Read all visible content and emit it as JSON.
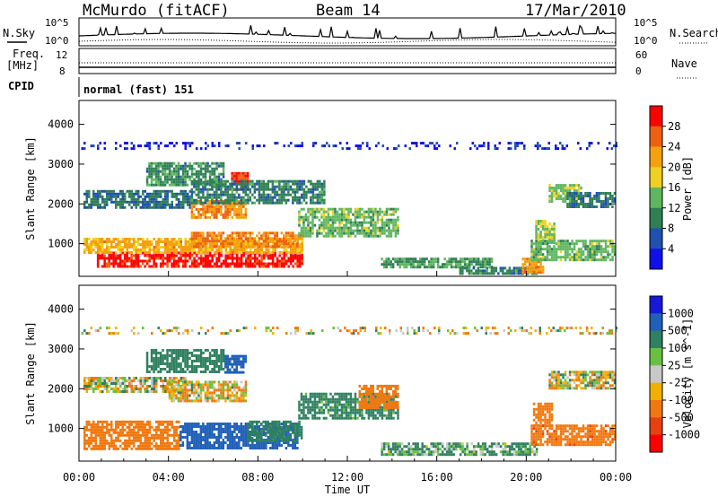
{
  "header": {
    "station": "McMurdo (fitACF)",
    "beam": "Beam 14",
    "date": "17/Mar/2010"
  },
  "top_panels": {
    "nsky_label": "N.Sky",
    "nsearch_label": "N.Search",
    "noise_ticks": [
      "10^5",
      "10^0"
    ],
    "freq_label_1": "Freq.",
    "freq_label_2": "[MHz]",
    "freq_ticks": [
      "12",
      "8"
    ],
    "nave_label": "Nave",
    "nave_ticks": [
      "60",
      "0"
    ],
    "cpid_label": "CPID",
    "cpid_value": "normal (fast) 151"
  },
  "axes": {
    "ylabel": "Slant Range [km]",
    "xlabel": "Time UT",
    "x_ticks": [
      "00:00",
      "04:00",
      "08:00",
      "12:00",
      "16:00",
      "20:00",
      "00:00"
    ],
    "y_ticks": [
      "1000",
      "2000",
      "3000",
      "4000"
    ]
  },
  "chart_data": [
    {
      "type": "heatmap",
      "title": "",
      "xlabel": "Time UT",
      "ylabel": "Slant Range [km]",
      "xlim": [
        0,
        24
      ],
      "ylim": [
        180,
        4600
      ],
      "colorbar_label": "Power [dB]",
      "colorbar_ticks": [
        "4",
        "8",
        "12",
        "16",
        "20",
        "24",
        "28"
      ],
      "colors": [
        "#1010e8",
        "#2050b0",
        "#2f7f55",
        "#5fb65f",
        "#f0d020",
        "#f5a010",
        "#ee6010",
        "#ff0000"
      ],
      "value_range": [
        0,
        30
      ],
      "regions": [
        {
          "t": [
            0.8,
            10.0
          ],
          "r": [
            450,
            800
          ],
          "v": 28
        },
        {
          "t": [
            0.2,
            10.0
          ],
          "r": [
            780,
            1150
          ],
          "v": 20
        },
        {
          "t": [
            5.0,
            10.0
          ],
          "r": [
            950,
            1300
          ],
          "v": 22
        },
        {
          "t": [
            9.8,
            14.3
          ],
          "r": [
            1200,
            1900
          ],
          "v": 13
        },
        {
          "t": [
            0.2,
            5.0
          ],
          "r": [
            1900,
            2350
          ],
          "v": 8
        },
        {
          "t": [
            5.0,
            7.5
          ],
          "r": [
            1650,
            2100
          ],
          "v": 22
        },
        {
          "t": [
            6.8,
            7.6
          ],
          "r": [
            2350,
            2800
          ],
          "v": 27
        },
        {
          "t": [
            5.0,
            11.0
          ],
          "r": [
            2000,
            2600
          ],
          "v": 9
        },
        {
          "t": [
            3.0,
            6.5
          ],
          "r": [
            2500,
            3050
          ],
          "v": 10
        },
        {
          "t": [
            13.5,
            18.5
          ],
          "r": [
            420,
            650
          ],
          "v": 11
        },
        {
          "t": [
            17.0,
            20.5
          ],
          "r": [
            250,
            420
          ],
          "v": 9
        },
        {
          "t": [
            19.8,
            20.8
          ],
          "r": [
            300,
            650
          ],
          "v": 22
        },
        {
          "t": [
            20.4,
            21.3
          ],
          "r": [
            1050,
            1600
          ],
          "v": 15
        },
        {
          "t": [
            20.2,
            24.0
          ],
          "r": [
            600,
            1100
          ],
          "v": 13
        },
        {
          "t": [
            21.0,
            22.5
          ],
          "r": [
            2050,
            2500
          ],
          "v": 14
        },
        {
          "t": [
            21.8,
            24.0
          ],
          "r": [
            1950,
            2300
          ],
          "v": 8
        },
        {
          "t": [
            0.0,
            24.0
          ],
          "r": [
            3400,
            3560
          ],
          "v": 3,
          "sparse": true
        }
      ]
    },
    {
      "type": "heatmap",
      "title": "",
      "xlabel": "Time UT",
      "ylabel": "Slant Range [km]",
      "xlim": [
        0,
        24
      ],
      "ylim": [
        180,
        4600
      ],
      "colorbar_label": "Velocity [m s^-1]",
      "colorbar_ticks": [
        "1000",
        "500",
        "100",
        "25",
        "-25",
        "-100",
        "-500",
        "-1000"
      ],
      "colors": [
        "#1818d8",
        "#2060b8",
        "#2f8060",
        "#68c040",
        "#c8c8c8",
        "#f0b000",
        "#f07810",
        "#e84010",
        "#ff0000"
      ],
      "value_range": [
        -1000,
        1000
      ],
      "regions": [
        {
          "t": [
            0.2,
            4.5
          ],
          "r": [
            500,
            1200
          ],
          "v": -300
        },
        {
          "t": [
            4.5,
            9.8
          ],
          "r": [
            500,
            1150
          ],
          "v": 800
        },
        {
          "t": [
            7.5,
            10.0
          ],
          "r": [
            700,
            1200
          ],
          "v": 300
        },
        {
          "t": [
            9.8,
            14.3
          ],
          "r": [
            1250,
            1900
          ],
          "v": 250
        },
        {
          "t": [
            12.5,
            14.3
          ],
          "r": [
            1500,
            2100
          ],
          "v": -300
        },
        {
          "t": [
            0.2,
            4.8
          ],
          "r": [
            1900,
            2300
          ],
          "v": 0
        },
        {
          "t": [
            4.0,
            7.5
          ],
          "r": [
            1700,
            2200
          ],
          "v": -60
        },
        {
          "t": [
            6.5,
            7.5
          ],
          "r": [
            2400,
            2850
          ],
          "v": 700
        },
        {
          "t": [
            3.0,
            6.5
          ],
          "r": [
            2400,
            3000
          ],
          "v": 300
        },
        {
          "t": [
            13.5,
            20.5
          ],
          "r": [
            350,
            650
          ],
          "v": 150
        },
        {
          "t": [
            20.3,
            21.2
          ],
          "r": [
            1050,
            1650
          ],
          "v": -300
        },
        {
          "t": [
            20.2,
            24.0
          ],
          "r": [
            600,
            1100
          ],
          "v": -350
        },
        {
          "t": [
            21.0,
            24.0
          ],
          "r": [
            2000,
            2450
          ],
          "v": 0
        },
        {
          "t": [
            0.0,
            24.0
          ],
          "r": [
            3400,
            3560
          ],
          "v": -30,
          "sparse": true
        }
      ]
    }
  ]
}
